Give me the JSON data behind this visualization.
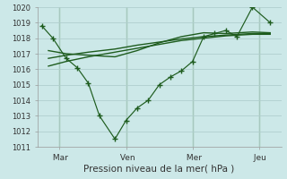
{
  "bg_color": "#cce8e8",
  "grid_color": "#b0cece",
  "line_color": "#1e5c1e",
  "marker_color": "#1e5c1e",
  "title": "Pression niveau de la mer( hPa )",
  "ylim": [
    1011,
    1020
  ],
  "yticks": [
    1011,
    1012,
    1013,
    1014,
    1015,
    1016,
    1017,
    1018,
    1019,
    1020
  ],
  "xtick_labels": [
    " Mar",
    " Ven",
    " Mer",
    " Jeu"
  ],
  "xtick_pos": [
    1,
    4,
    7,
    10
  ],
  "xlim": [
    0,
    11
  ],
  "vline_x": [
    1,
    4,
    7,
    10
  ],
  "series1_x": [
    0.2,
    0.7,
    1.3,
    1.8,
    2.3,
    2.8,
    3.5,
    4.0,
    4.5,
    5.0,
    5.5,
    6.0,
    6.5,
    7.0,
    7.5,
    8.0,
    8.5,
    9.0,
    9.7,
    10.5
  ],
  "series1_y": [
    1018.8,
    1018.0,
    1016.7,
    1016.1,
    1015.1,
    1013.0,
    1011.5,
    1012.7,
    1013.5,
    1014.0,
    1015.0,
    1015.5,
    1015.9,
    1016.5,
    1018.1,
    1018.3,
    1018.5,
    1018.1,
    1020.0,
    1019.0
  ],
  "series2_x": [
    0.5,
    1.3,
    2.3,
    3.5,
    4.5,
    5.5,
    6.5,
    7.5,
    8.5,
    9.7,
    10.5
  ],
  "series2_y": [
    1017.2,
    1017.0,
    1016.9,
    1016.8,
    1017.2,
    1017.7,
    1018.1,
    1018.35,
    1018.3,
    1018.4,
    1018.35
  ],
  "series3_x": [
    0.5,
    1.3,
    2.3,
    3.5,
    4.5,
    5.5,
    6.5,
    7.5,
    8.5,
    9.7,
    10.5
  ],
  "series3_y": [
    1016.7,
    1016.9,
    1017.1,
    1017.3,
    1017.55,
    1017.75,
    1017.95,
    1018.1,
    1018.2,
    1018.3,
    1018.3
  ],
  "series4_x": [
    0.5,
    1.3,
    2.3,
    3.5,
    4.5,
    5.5,
    6.5,
    7.5,
    8.5,
    9.7,
    10.5
  ],
  "series4_y": [
    1016.2,
    1016.5,
    1016.8,
    1017.1,
    1017.35,
    1017.6,
    1017.85,
    1018.0,
    1018.15,
    1018.25,
    1018.25
  ]
}
